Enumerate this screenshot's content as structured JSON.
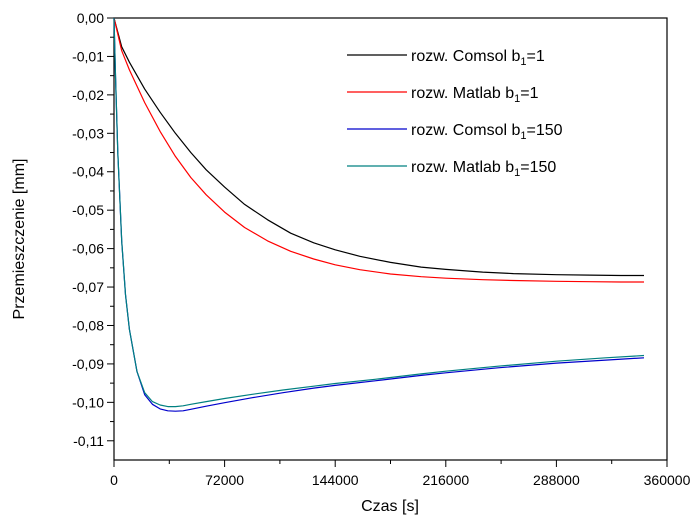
{
  "chart_data": {
    "type": "line",
    "xlabel": "Czas [s]",
    "ylabel": "Przemieszczenie [mm]",
    "xlim": [
      0,
      360000
    ],
    "ylim": [
      -0.115,
      0.0
    ],
    "xticks": [
      0,
      72000,
      144000,
      216000,
      288000,
      360000
    ],
    "xtick_labels": [
      "0",
      "72000",
      "144000",
      "216000",
      "288000",
      "360000"
    ],
    "yticks": [
      0,
      -0.01,
      -0.02,
      -0.03,
      -0.04,
      -0.05,
      -0.06,
      -0.07,
      -0.08,
      -0.09,
      -0.1,
      -0.11
    ],
    "ytick_labels": [
      "0,00",
      "-0,01",
      "-0,02",
      "-0,03",
      "-0,04",
      "-0,05",
      "-0,06",
      "-0,07",
      "-0,08",
      "-0,09",
      "-0,10",
      "-0,11"
    ],
    "grid": false,
    "legend": "top-right",
    "series": [
      {
        "name_prefix": "rozw. Comsol b",
        "name_sub": "1",
        "name_suffix": "=1",
        "color": "#000000",
        "x": [
          0,
          5000,
          10000,
          20000,
          30000,
          40000,
          50000,
          60000,
          72000,
          85000,
          100000,
          115000,
          130000,
          144000,
          160000,
          180000,
          200000,
          216000,
          240000,
          260000,
          288000,
          310000,
          330000,
          345000
        ],
        "y": [
          0,
          -0.0075,
          -0.0115,
          -0.0185,
          -0.0245,
          -0.03,
          -0.035,
          -0.0395,
          -0.044,
          -0.0485,
          -0.0525,
          -0.056,
          -0.0585,
          -0.0603,
          -0.062,
          -0.0636,
          -0.0648,
          -0.0654,
          -0.0661,
          -0.0665,
          -0.0668,
          -0.0669,
          -0.067,
          -0.067
        ]
      },
      {
        "name_prefix": "rozw. Matlab b",
        "name_sub": "1",
        "name_suffix": "=1",
        "color": "#ff0000",
        "x": [
          0,
          5000,
          10000,
          20000,
          30000,
          40000,
          50000,
          60000,
          72000,
          85000,
          100000,
          115000,
          130000,
          144000,
          160000,
          180000,
          200000,
          216000,
          240000,
          260000,
          288000,
          310000,
          330000,
          345000
        ],
        "y": [
          0,
          -0.0085,
          -0.0135,
          -0.022,
          -0.0295,
          -0.036,
          -0.0415,
          -0.046,
          -0.0505,
          -0.0545,
          -0.058,
          -0.0607,
          -0.0627,
          -0.0642,
          -0.0655,
          -0.0666,
          -0.0673,
          -0.0677,
          -0.0681,
          -0.0683,
          -0.0685,
          -0.0686,
          -0.0687,
          -0.0687
        ]
      },
      {
        "name_prefix": "rozw. Comsol b",
        "name_sub": "1",
        "name_suffix": "=150",
        "color": "#0000cc",
        "x": [
          0,
          1000,
          2500,
          5000,
          7500,
          10000,
          15000,
          20000,
          25000,
          30000,
          35000,
          40000,
          45000,
          50000,
          60000,
          72000,
          90000,
          110000,
          130000,
          144000,
          170000,
          200000,
          216000,
          250000,
          288000,
          320000,
          345000
        ],
        "y": [
          0,
          -0.015,
          -0.035,
          -0.058,
          -0.072,
          -0.081,
          -0.092,
          -0.098,
          -0.1005,
          -0.1017,
          -0.1022,
          -0.1023,
          -0.1022,
          -0.1018,
          -0.101,
          -0.1001,
          -0.0988,
          -0.0975,
          -0.0963,
          -0.0956,
          -0.0944,
          -0.093,
          -0.0923,
          -0.091,
          -0.0898,
          -0.089,
          -0.0884
        ]
      },
      {
        "name_prefix": "rozw. Matlab b",
        "name_sub": "1",
        "name_suffix": "=150",
        "color": "#008080",
        "x": [
          0,
          1000,
          2500,
          5000,
          7500,
          10000,
          15000,
          20000,
          25000,
          30000,
          35000,
          40000,
          45000,
          50000,
          60000,
          72000,
          90000,
          110000,
          130000,
          144000,
          170000,
          200000,
          216000,
          250000,
          288000,
          320000,
          345000
        ],
        "y": [
          0,
          -0.015,
          -0.035,
          -0.058,
          -0.072,
          -0.081,
          -0.092,
          -0.0975,
          -0.0998,
          -0.1007,
          -0.1011,
          -0.1011,
          -0.1009,
          -0.1005,
          -0.0998,
          -0.099,
          -0.0979,
          -0.0968,
          -0.0958,
          -0.0951,
          -0.094,
          -0.0926,
          -0.0919,
          -0.0906,
          -0.0893,
          -0.0884,
          -0.0878
        ]
      }
    ]
  }
}
